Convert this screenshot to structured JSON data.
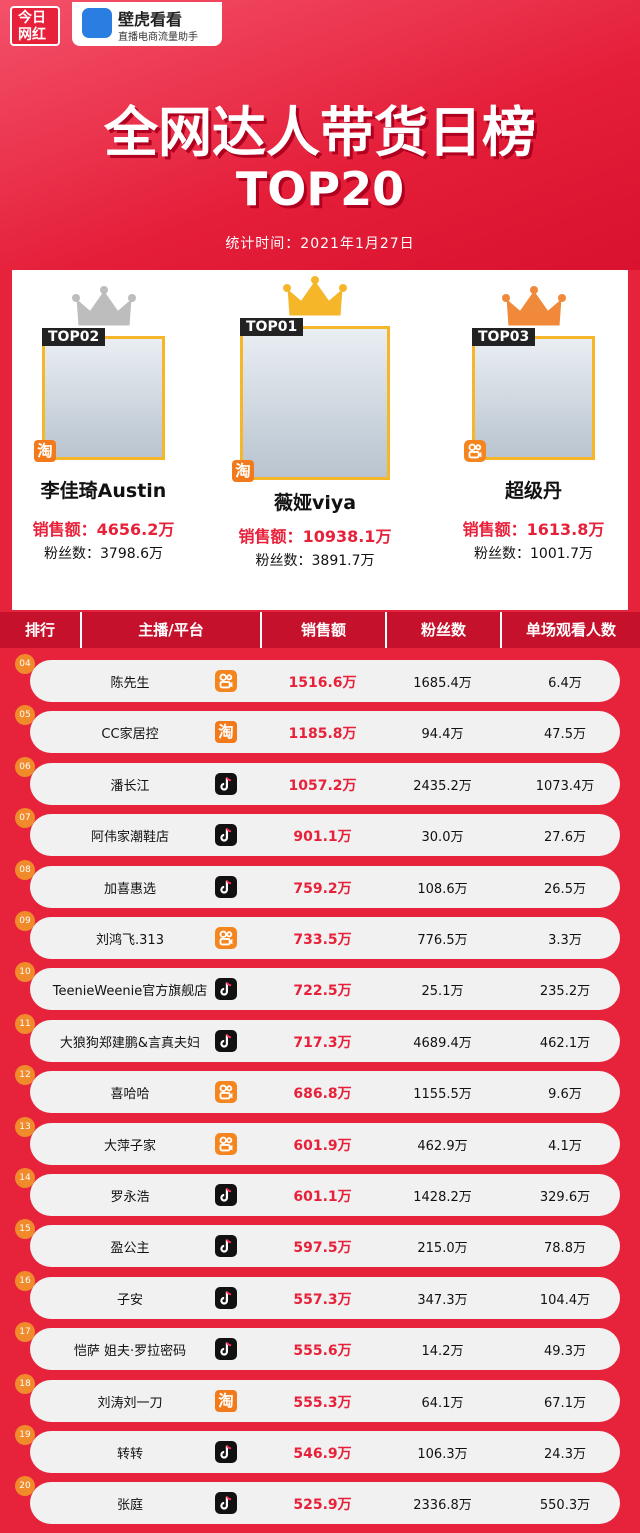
{
  "logos": {
    "left": "今日网红",
    "brand": "壁虎看看",
    "brand_sub": "直播电商流量助手"
  },
  "header": {
    "title": "全网达人带货日榜",
    "subtitle": "TOP20",
    "date": "统计时间：2021年1月27日"
  },
  "icons": {
    "taobao": "淘"
  },
  "labels": {
    "sales": "销售额：",
    "fans": "粉丝数："
  },
  "top3": [
    {
      "rank": "TOP02",
      "name": "李佳琦Austin",
      "platform": "taobao",
      "sales": "4656.2万",
      "fans": "3798.6万",
      "crown": "#bdbdbd"
    },
    {
      "rank": "TOP01",
      "name": "薇娅viya",
      "platform": "taobao",
      "sales": "10938.1万",
      "fans": "3891.7万",
      "crown": "#f5b62a"
    },
    {
      "rank": "TOP03",
      "name": "超级丹",
      "platform": "kuaishou",
      "sales": "1613.8万",
      "fans": "1001.7万",
      "crown": "#f08a3a"
    }
  ],
  "table": {
    "columns": [
      "排行",
      "主播/平台",
      "销售额",
      "粉丝数",
      "单场观看人数"
    ],
    "rows": [
      [
        "04",
        "陈先生",
        "kuaishou",
        "1516.6万",
        "1685.4万",
        "6.4万"
      ],
      [
        "05",
        "CC家居控",
        "taobao",
        "1185.8万",
        "94.4万",
        "47.5万"
      ],
      [
        "06",
        "潘长江",
        "douyin",
        "1057.2万",
        "2435.2万",
        "1073.4万"
      ],
      [
        "07",
        "阿伟家潮鞋店",
        "douyin",
        "901.1万",
        "30.0万",
        "27.6万"
      ],
      [
        "08",
        "加喜惠选",
        "douyin",
        "759.2万",
        "108.6万",
        "26.5万"
      ],
      [
        "09",
        "刘鸿飞.313",
        "kuaishou",
        "733.5万",
        "776.5万",
        "3.3万"
      ],
      [
        "10",
        "TeenieWeenie官方旗舰店",
        "douyin",
        "722.5万",
        "25.1万",
        "235.2万"
      ],
      [
        "11",
        "大狼狗郑建鹏&言真夫妇",
        "douyin",
        "717.3万",
        "4689.4万",
        "462.1万"
      ],
      [
        "12",
        "喜哈哈",
        "kuaishou",
        "686.8万",
        "1155.5万",
        "9.6万"
      ],
      [
        "13",
        "大萍子家",
        "kuaishou",
        "601.9万",
        "462.9万",
        "4.1万"
      ],
      [
        "14",
        "罗永浩",
        "douyin",
        "601.1万",
        "1428.2万",
        "329.6万"
      ],
      [
        "15",
        "盈公主",
        "douyin",
        "597.5万",
        "215.0万",
        "78.8万"
      ],
      [
        "16",
        "子安",
        "douyin",
        "557.3万",
        "347.3万",
        "104.4万"
      ],
      [
        "17",
        "恺萨 姐夫·罗拉密码",
        "douyin",
        "555.6万",
        "14.2万",
        "49.3万"
      ],
      [
        "18",
        "刘涛刘一刀",
        "taobao",
        "555.3万",
        "64.1万",
        "67.1万"
      ],
      [
        "19",
        "转转",
        "douyin",
        "546.9万",
        "106.3万",
        "24.3万"
      ],
      [
        "20",
        "张庭",
        "douyin",
        "525.9万",
        "2336.8万",
        "550.3万"
      ]
    ]
  }
}
